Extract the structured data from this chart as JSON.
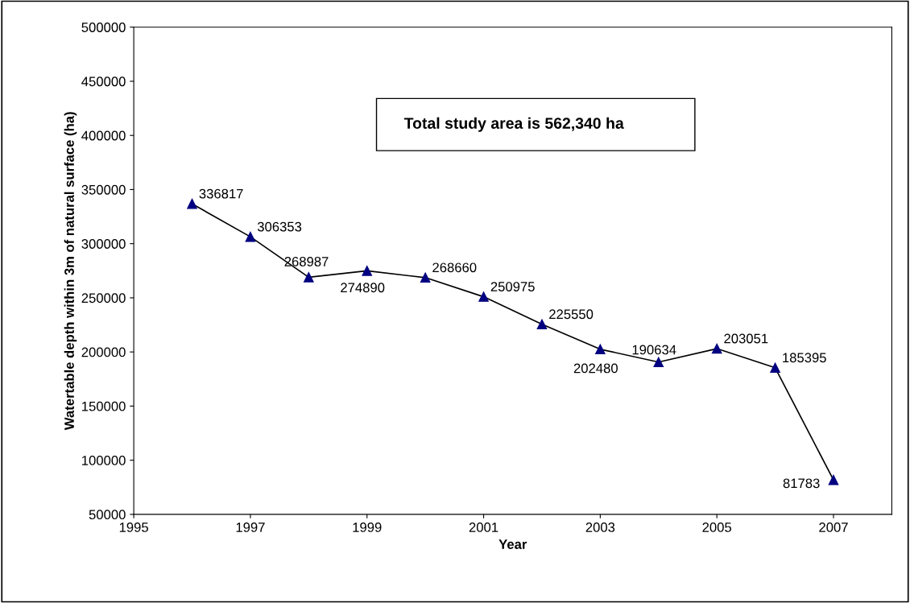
{
  "chart_data": {
    "type": "line",
    "xlabel": "Year",
    "ylabel": "Watertable depth within 3m of natural surface (ha)",
    "annotations": [
      "Total study area is 562,340 ha"
    ],
    "x": [
      1996,
      1997,
      1998,
      1999,
      2000,
      2001,
      2002,
      2003,
      2004,
      2005,
      2006,
      2007
    ],
    "series": [
      {
        "color": "#000080",
        "values": [
          336817,
          306353,
          268987,
          274890,
          268660,
          250975,
          225550,
          202480,
          190634,
          203051,
          185395,
          81783
        ]
      }
    ],
    "xlim": [
      1995,
      2008
    ],
    "xticks": [
      1995,
      1997,
      1999,
      2001,
      2003,
      2005,
      2007
    ],
    "ylim": [
      50000,
      500000
    ],
    "yticks": [
      50000,
      100000,
      150000,
      200000,
      250000,
      300000,
      350000,
      400000,
      450000,
      500000
    ],
    "grid": false,
    "legend": false,
    "marker": "triangle",
    "line_style": "solid",
    "data_labels": true
  }
}
